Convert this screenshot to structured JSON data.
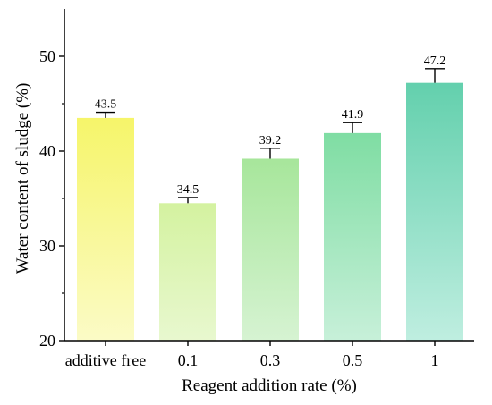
{
  "chart_data": {
    "type": "bar",
    "xlabel": "Reagent addition rate (%)",
    "ylabel": "Water content of sludge (%)",
    "ylim": [
      20,
      55
    ],
    "yticks": [
      20,
      30,
      40,
      50
    ],
    "grid": false,
    "categories": [
      "additive free",
      "0.1",
      "0.3",
      "0.5",
      "1"
    ],
    "values": [
      43.5,
      34.5,
      39.2,
      41.9,
      47.2
    ],
    "errors": [
      0.6,
      0.6,
      1.1,
      1.1,
      1.5
    ],
    "value_labels": [
      "43.5",
      "34.5",
      "39.2",
      "41.9",
      "47.2"
    ],
    "colors": [
      [
        "#f6f56a",
        "#fbfbc6"
      ],
      [
        "#d4f2a0",
        "#e8f8cf"
      ],
      [
        "#a7e69b",
        "#d6f3d2"
      ],
      [
        "#7fdda3",
        "#c7f0d9"
      ],
      [
        "#63d0ad",
        "#bfeee0"
      ]
    ]
  }
}
